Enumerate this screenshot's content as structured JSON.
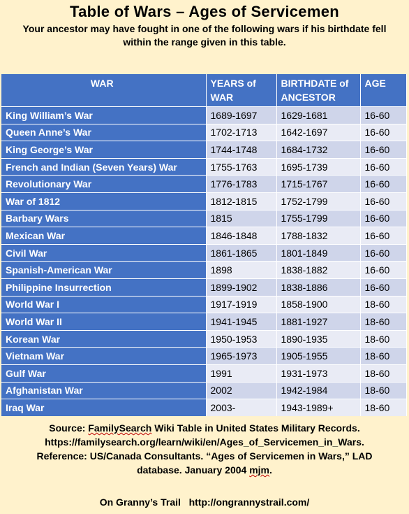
{
  "title": "Table of Wars – Ages of Servicemen",
  "subtitle": "Your ancestor may have fought in one of the following wars if his birthdate fell within the range given in this table.",
  "table": {
    "headers": {
      "war": "WAR",
      "years_line1": "YEARS of",
      "years_line2": "WAR",
      "birth_line1": "BIRTHDATE of",
      "birth_line2": "ANCESTOR",
      "age": "AGE"
    },
    "rows": [
      {
        "war": "King William’s War",
        "years": "1689-1697",
        "birthdate": "1629-1681",
        "age": "16-60"
      },
      {
        "war": "Queen Anne’s War",
        "years": "1702-1713",
        "birthdate": "1642-1697",
        "age": "16-60"
      },
      {
        "war": "King George’s War",
        "years": "1744-1748",
        "birthdate": "1684-1732",
        "age": "16-60"
      },
      {
        "war": "French and Indian (Seven Years) War",
        "years": "1755-1763",
        "birthdate": "1695-1739",
        "age": "16-60"
      },
      {
        "war": "Revolutionary War",
        "years": "1776-1783",
        "birthdate": "1715-1767",
        "age": "16-60"
      },
      {
        "war": "War of 1812",
        "years": "1812-1815",
        "birthdate": "1752-1799",
        "age": "16-60"
      },
      {
        "war": "Barbary Wars",
        "years": "1815",
        "birthdate": "1755-1799",
        "age": "16-60"
      },
      {
        "war": "Mexican War",
        "years": "1846-1848",
        "birthdate": "1788-1832",
        "age": "16-60"
      },
      {
        "war": "Civil War",
        "years": "1861-1865",
        "birthdate": "1801-1849",
        "age": "16-60"
      },
      {
        "war": "Spanish-American War",
        "years": "1898",
        "birthdate": "1838-1882",
        "age": "16-60"
      },
      {
        "war": "Philippine Insurrection",
        "years": "1899-1902",
        "birthdate": "1838-1886",
        "age": "16-60"
      },
      {
        "war": "World War I",
        "years": "1917-1919",
        "birthdate": "1858-1900",
        "age": "18-60"
      },
      {
        "war": "World War II",
        "years": "1941-1945",
        "birthdate": "1881-1927",
        "age": "18-60"
      },
      {
        "war": "Korean War",
        "years": "1950-1953",
        "birthdate": "1890-1935",
        "age": "18-60"
      },
      {
        "war": "Vietnam War",
        "years": "1965-1973",
        "birthdate": "1905-1955",
        "age": "18-60"
      },
      {
        "war": "Gulf War",
        "years": "1991",
        "birthdate": "1931-1973",
        "age": "18-60"
      },
      {
        "war": "Afghanistan War",
        "years": "2002",
        "birthdate": "1942-1984",
        "age": "18-60"
      },
      {
        "war": "Iraq War",
        "years": "2003-",
        "birthdate": "1943-1989+",
        "age": "18-60"
      }
    ]
  },
  "source": {
    "line1_prefix": "Source:  ",
    "line1_link": "FamilySearch",
    "line1_suffix": " Wiki Table in United States Military Records.",
    "line2": "https://familysearch.org/learn/wiki/en/Ages_of_Servicemen_in_Wars.",
    "line3": "Reference: US/Canada Consultants. “Ages of Servicemen in Wars,” LAD",
    "line4_prefix": "database. January 2004 ",
    "line4_initials": "mjm",
    "line4_suffix": "."
  },
  "footer": {
    "name": "On Granny’s Trail",
    "url": "http://ongrannystrail.com/"
  },
  "colors": {
    "background": "#fff2cc",
    "header_blue": "#4472c4",
    "row_dark": "#cfd5ea",
    "row_light": "#e9ebf5"
  }
}
